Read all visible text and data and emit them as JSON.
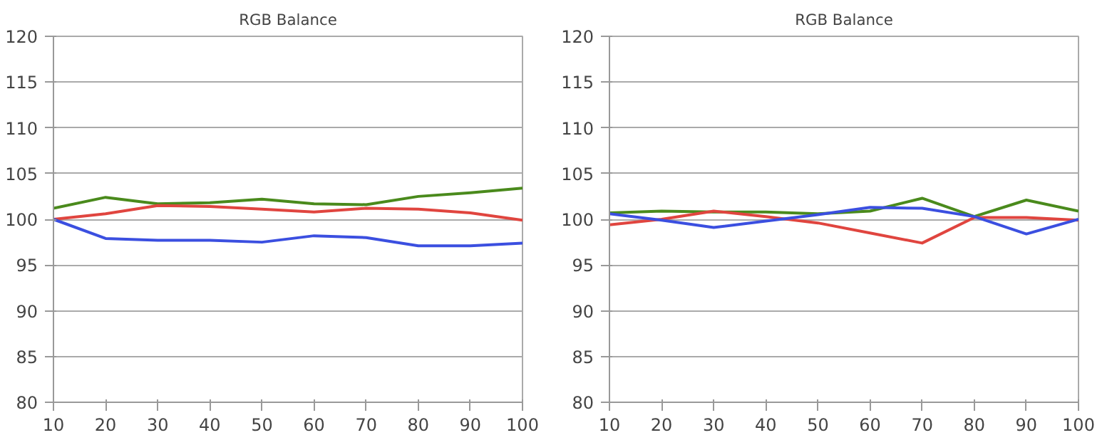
{
  "chart_data": [
    {
      "type": "line",
      "title": "RGB Balance",
      "x": [
        10,
        20,
        30,
        40,
        50,
        60,
        70,
        80,
        90,
        100
      ],
      "xlim": [
        10,
        100
      ],
      "xticks": [
        10,
        20,
        30,
        40,
        50,
        60,
        70,
        80,
        90,
        100
      ],
      "ylim": [
        80,
        120
      ],
      "yticks": [
        80,
        85,
        90,
        95,
        100,
        105,
        110,
        115,
        120
      ],
      "grid": "y",
      "series": [
        {
          "color": "#4a8a1c",
          "values": [
            101.2,
            102.4,
            101.7,
            101.8,
            102.2,
            101.7,
            101.6,
            102.5,
            102.9,
            103.4
          ]
        },
        {
          "color": "#e0453f",
          "values": [
            100.0,
            100.6,
            101.5,
            101.4,
            101.1,
            100.8,
            101.2,
            101.1,
            100.7,
            99.9
          ]
        },
        {
          "color": "#3b4fe0",
          "values": [
            100.0,
            97.9,
            97.7,
            97.7,
            97.5,
            98.2,
            98.0,
            97.1,
            97.1,
            97.4
          ]
        }
      ]
    },
    {
      "type": "line",
      "title": "RGB Balance",
      "x": [
        10,
        20,
        30,
        40,
        50,
        60,
        70,
        80,
        90,
        100
      ],
      "xlim": [
        10,
        100
      ],
      "xticks": [
        10,
        20,
        30,
        40,
        50,
        60,
        70,
        80,
        90,
        100
      ],
      "ylim": [
        80,
        120
      ],
      "yticks": [
        80,
        85,
        90,
        95,
        100,
        105,
        110,
        115,
        120
      ],
      "grid": "y",
      "series": [
        {
          "color": "#4a8a1c",
          "values": [
            100.7,
            100.9,
            100.8,
            100.8,
            100.6,
            100.9,
            102.3,
            100.3,
            102.1,
            100.9
          ]
        },
        {
          "color": "#e0453f",
          "values": [
            99.4,
            100.0,
            100.9,
            100.3,
            99.6,
            98.5,
            97.4,
            100.2,
            100.2,
            99.9
          ]
        },
        {
          "color": "#3b4fe0",
          "values": [
            100.6,
            99.9,
            99.1,
            99.8,
            100.5,
            101.3,
            101.2,
            100.3,
            98.4,
            100.0
          ]
        }
      ]
    }
  ]
}
